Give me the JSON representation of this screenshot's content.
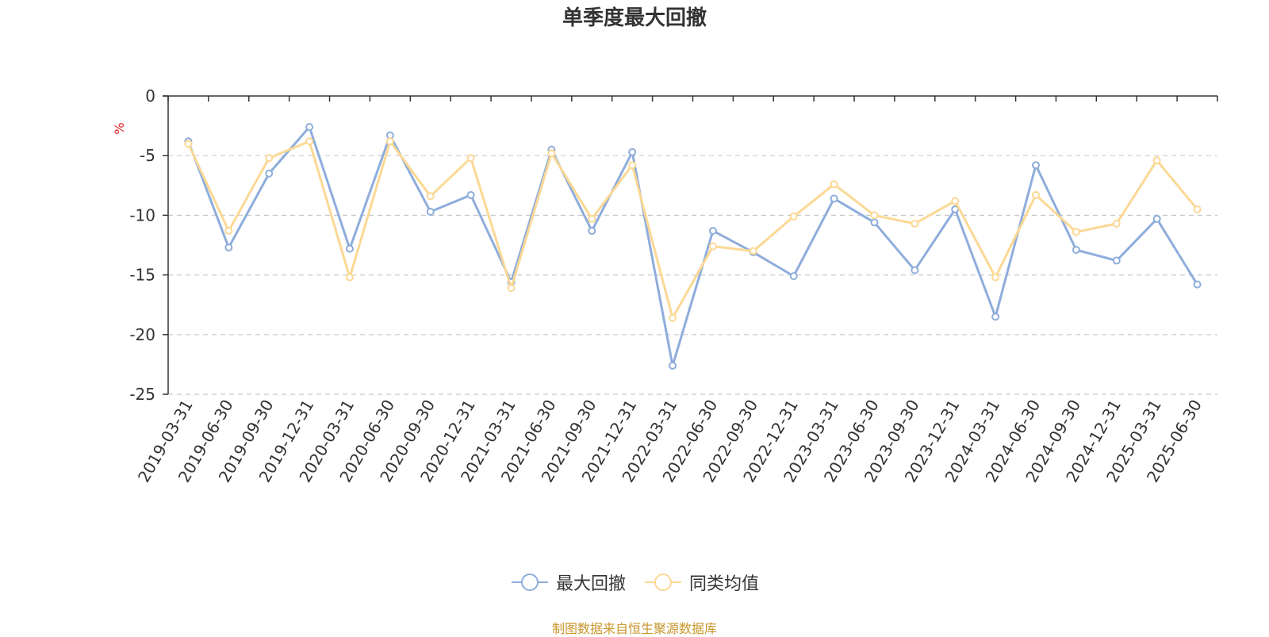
{
  "chart_data": {
    "type": "line",
    "title": "单季度最大回撤",
    "ylabel": "%",
    "ylim": [
      -25,
      0
    ],
    "yticks": [
      0,
      -5,
      -10,
      -15,
      -20,
      -25
    ],
    "grid": true,
    "legend_position": "bottom",
    "categories": [
      "2019-03-31",
      "2019-06-30",
      "2019-09-30",
      "2019-12-31",
      "2020-03-31",
      "2020-06-30",
      "2020-09-30",
      "2020-12-31",
      "2021-03-31",
      "2021-06-30",
      "2021-09-30",
      "2021-12-31",
      "2022-03-31",
      "2022-06-30",
      "2022-09-30",
      "2022-12-31",
      "2023-03-31",
      "2023-06-30",
      "2023-09-30",
      "2023-12-31",
      "2024-03-31",
      "2024-06-30",
      "2024-09-30",
      "2024-12-31",
      "2025-03-31",
      "2025-06-30"
    ],
    "series": [
      {
        "name": "最大回撤",
        "color": "#8eaddb",
        "values": [
          -3.8,
          -12.7,
          -6.5,
          -2.6,
          -12.8,
          -3.3,
          -9.7,
          -8.3,
          -15.6,
          -4.5,
          -11.3,
          -4.7,
          -22.6,
          -11.3,
          -13.1,
          -15.1,
          -8.6,
          -10.6,
          -14.6,
          -9.5,
          -18.5,
          -5.8,
          -12.9,
          -13.8,
          -10.3,
          -15.8
        ]
      },
      {
        "name": "同类均值",
        "color": "#fbd894",
        "values": [
          -4.0,
          -11.3,
          -5.2,
          -3.8,
          -15.2,
          -3.8,
          -8.4,
          -5.2,
          -16.1,
          -4.8,
          -10.3,
          -5.8,
          -18.6,
          -12.6,
          -13.0,
          -10.1,
          -7.4,
          -10.0,
          -10.7,
          -8.8,
          -15.2,
          -8.3,
          -11.4,
          -10.7,
          -5.4,
          -9.5
        ]
      }
    ]
  },
  "source_note": "制图数据来自恒生聚源数据库"
}
